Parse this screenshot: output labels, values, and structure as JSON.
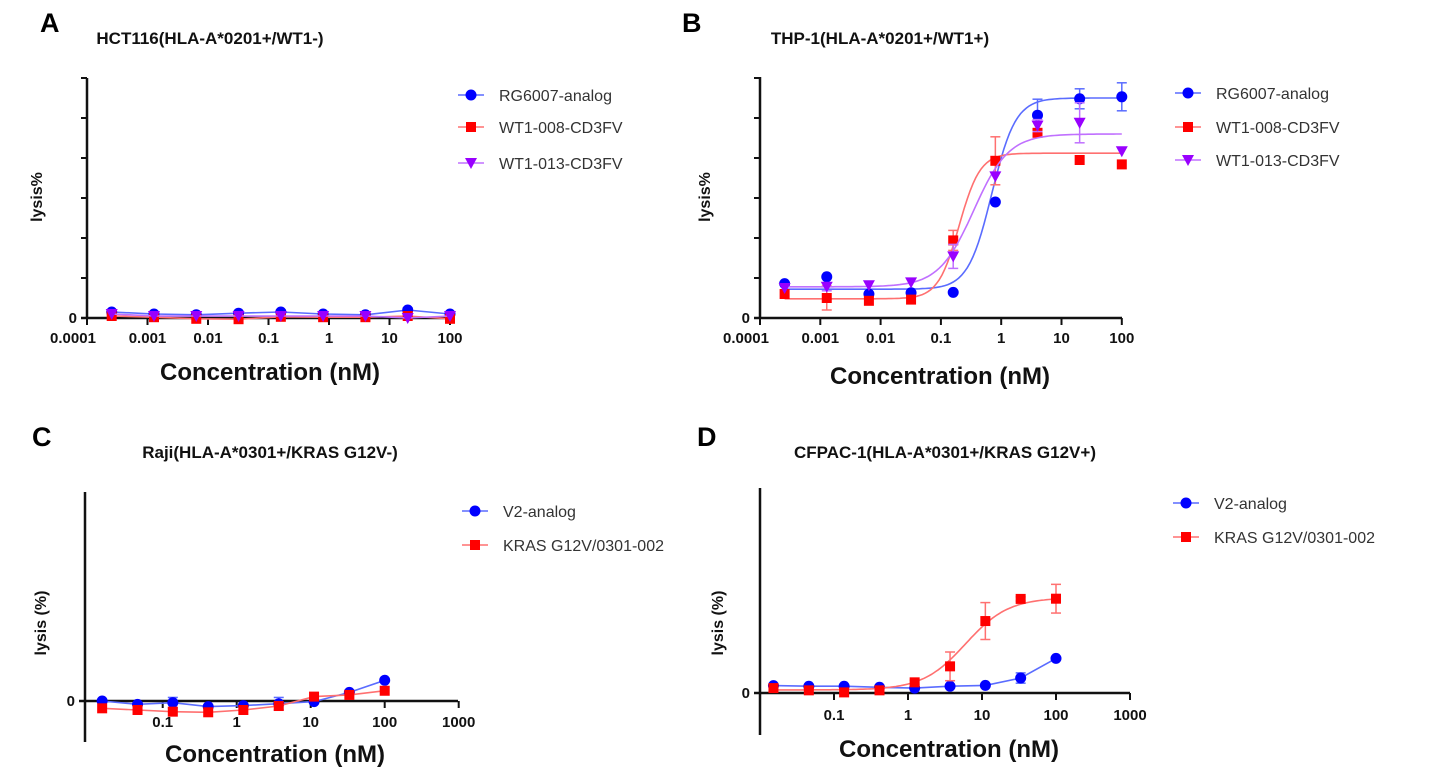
{
  "chart_data": [
    {
      "panel_letter": "A",
      "type": "scatter",
      "title": "HCT116(HLA-A*0201+/WT1-)",
      "xlabel": "Concentration (nM)",
      "ylabel": "lysis%",
      "xscale": "log",
      "xlim": [
        0.0001,
        100
      ],
      "x_ticks": [
        "0.0001",
        "0.001",
        "0.01",
        "0.1",
        "1",
        "10",
        "100"
      ],
      "y_ticks": [
        "0"
      ],
      "ylim": [
        0,
        6
      ],
      "grid": false,
      "legend": "right",
      "x": [
        0.000256,
        0.00128,
        0.0064,
        0.032,
        0.16,
        0.8,
        4,
        20,
        100
      ],
      "series": [
        {
          "name": "RG6007-analog",
          "color": "#0000ff",
          "marker": "circle",
          "values": [
            0.15,
            0.1,
            0.08,
            0.12,
            0.15,
            0.1,
            0.08,
            0.2,
            0.1
          ],
          "errors": [
            0.05,
            0,
            0,
            0,
            0.05,
            0,
            0,
            0.05,
            0
          ]
        },
        {
          "name": "WT1-008-CD3FV",
          "color": "#ff0000",
          "marker": "square",
          "values": [
            0.05,
            0.02,
            -0.02,
            -0.03,
            0.03,
            0.02,
            0.02,
            0.05,
            -0.02
          ],
          "errors": [
            0,
            0,
            0,
            0,
            0,
            0,
            0,
            0,
            0
          ]
        },
        {
          "name": "WT1-013-CD3FV",
          "color": "#9900ff",
          "marker": "triangle-down",
          "values": [
            0.1,
            0.05,
            0.05,
            0.05,
            0.05,
            0.05,
            0.05,
            0.0,
            0.05
          ],
          "errors": [
            0,
            0,
            0,
            0,
            0,
            0,
            0,
            0,
            0
          ]
        }
      ]
    },
    {
      "panel_letter": "B",
      "type": "scatter",
      "title": "THP-1(HLA-A*0201+/WT1+)",
      "xlabel": "Concentration (nM)",
      "ylabel": "lysis%",
      "xscale": "log",
      "xlim": [
        0.0001,
        100
      ],
      "x_ticks": [
        "0.0001",
        "0.001",
        "0.01",
        "0.1",
        "1",
        "10",
        "100"
      ],
      "y_ticks": [
        "0"
      ],
      "ylim": [
        0,
        6
      ],
      "grid": false,
      "legend": "right",
      "x": [
        0.000256,
        0.00128,
        0.0064,
        0.032,
        0.16,
        0.8,
        4,
        20,
        100
      ],
      "series": [
        {
          "name": "RG6007-analog",
          "color": "#0000ff",
          "marker": "circle",
          "values": [
            0.86,
            1.03,
            0.6,
            0.63,
            0.64,
            2.9,
            5.07,
            5.48,
            5.53
          ],
          "errors": [
            0,
            0,
            0,
            0,
            0,
            0,
            0.4,
            0.25,
            0.35
          ],
          "fit": {
            "bottom": 0.72,
            "top": 5.5,
            "ec50": 0.7,
            "hill": 2.2
          }
        },
        {
          "name": "WT1-008-CD3FV",
          "color": "#ff0000",
          "marker": "square",
          "values": [
            0.6,
            0.5,
            0.43,
            0.46,
            1.94,
            3.93,
            4.63,
            3.95,
            3.84
          ],
          "errors": [
            0,
            0.3,
            0,
            0,
            0.25,
            0.6,
            0,
            0,
            0
          ],
          "fit": {
            "bottom": 0.48,
            "top": 4.12,
            "ec50": 0.2,
            "hill": 2.5
          }
        },
        {
          "name": "WT1-013-CD3FV",
          "color": "#9900ff",
          "marker": "triangle-down",
          "values": [
            0.75,
            0.78,
            0.82,
            0.89,
            1.54,
            3.54,
            4.81,
            4.88,
            4.17
          ],
          "errors": [
            0,
            0.1,
            0,
            0,
            0.3,
            0,
            0.15,
            0.5,
            0
          ],
          "fit": {
            "bottom": 0.78,
            "top": 4.6,
            "ec50": 0.35,
            "hill": 1.5
          }
        }
      ]
    },
    {
      "panel_letter": "C",
      "type": "line",
      "title": "Raji(HLA-A*0301+/KRAS G12V-)",
      "xlabel": "Concentration (nM)",
      "ylabel": "lysis (%)",
      "xscale": "log",
      "x_ticks": [
        "0.1",
        "1",
        "10",
        "100",
        "1000"
      ],
      "y_ticks": [
        "0"
      ],
      "ylim": [
        -2,
        10
      ],
      "grid": false,
      "legend": "right",
      "x": [
        0.0152,
        0.0457,
        0.137,
        0.412,
        1.23,
        3.7,
        11.1,
        33.3,
        100
      ],
      "series": [
        {
          "name": "V2-analog",
          "color": "#0000ff",
          "marker": "circle",
          "values": [
            0.0,
            -0.16,
            -0.08,
            -0.27,
            -0.22,
            -0.13,
            -0.03,
            0.41,
            0.99
          ],
          "errors": [
            0,
            0,
            0.25,
            0,
            0,
            0.3,
            0,
            0.1,
            0
          ]
        },
        {
          "name": "KRAS G12V/0301-002",
          "color": "#ff0000",
          "marker": "square",
          "values": [
            -0.35,
            -0.43,
            -0.51,
            -0.54,
            -0.43,
            -0.24,
            0.21,
            0.29,
            0.49
          ],
          "errors": [
            0,
            0,
            0,
            0,
            0,
            0,
            0,
            0,
            0
          ]
        }
      ]
    },
    {
      "panel_letter": "D",
      "type": "scatter",
      "title": "CFPAC-1(HLA-A*0301+/KRAS G12V+)",
      "xlabel": "Concentration (nM)",
      "ylabel": "lysis (%)",
      "xscale": "log",
      "x_ticks": [
        "0.1",
        "1",
        "10",
        "100",
        "1000"
      ],
      "y_ticks": [
        "0"
      ],
      "ylim": [
        -2,
        10
      ],
      "grid": false,
      "legend": "right",
      "x": [
        0.0152,
        0.0457,
        0.137,
        0.412,
        1.23,
        3.7,
        11.1,
        33.3,
        100
      ],
      "series": [
        {
          "name": "V2-analog",
          "color": "#0000ff",
          "marker": "circle",
          "values": [
            0.36,
            0.33,
            0.33,
            0.28,
            0.24,
            0.33,
            0.37,
            0.73,
            1.69
          ],
          "errors": [
            0,
            0,
            0,
            0,
            0,
            0,
            0,
            0.25,
            0
          ]
        },
        {
          "name": "KRAS G12V/0301-002",
          "color": "#ff0000",
          "marker": "square",
          "values": [
            0.24,
            0.13,
            0.03,
            0.13,
            0.52,
            1.3,
            3.51,
            4.59,
            4.6
          ],
          "errors": [
            0,
            0,
            0,
            0,
            0.1,
            0.7,
            0.9,
            0.1,
            0.7
          ],
          "fit": {
            "bottom": 0.15,
            "top": 4.65,
            "ec50": 6,
            "hill": 1.5
          }
        }
      ]
    }
  ]
}
